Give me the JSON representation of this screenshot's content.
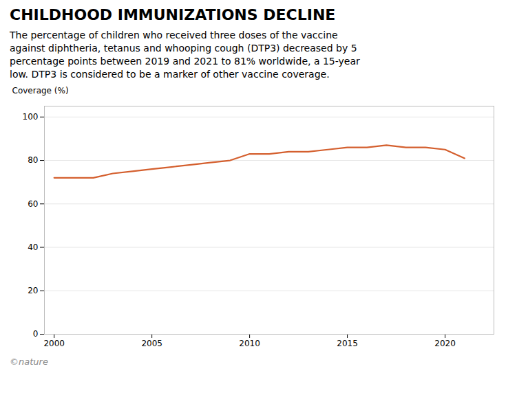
{
  "chart_data": {
    "type": "line",
    "title": "CHILDHOOD IMMUNIZATIONS DECLINE",
    "subtitle": "The percentage of children who received three doses of the vaccine\nagainst diphtheria, tetanus and whooping cough (DTP3) decreased by 5\npercentage points between 2019 and 2021 to 81% worldwide, a 15-year\nlow. DTP3 is considered to be a marker of other vaccine coverage.",
    "ylabel": "Coverage (%)",
    "caption": "©nature",
    "x": [
      2000,
      2001,
      2002,
      2003,
      2004,
      2005,
      2006,
      2007,
      2008,
      2009,
      2010,
      2011,
      2012,
      2013,
      2014,
      2015,
      2016,
      2017,
      2018,
      2019,
      2020,
      2021
    ],
    "values": [
      72,
      72,
      72,
      74,
      75,
      76,
      77,
      78,
      79,
      80,
      83,
      83,
      84,
      84,
      85,
      86,
      86,
      87,
      86,
      86,
      85,
      81
    ],
    "color": "#d45f2e",
    "xlim": [
      1999.5,
      2022.5
    ],
    "xticks": [
      2000,
      2005,
      2010,
      2015,
      2020
    ],
    "ylim": [
      0,
      105
    ],
    "yticks": [
      0,
      20,
      40,
      60,
      80,
      100
    ],
    "grid": true
  }
}
